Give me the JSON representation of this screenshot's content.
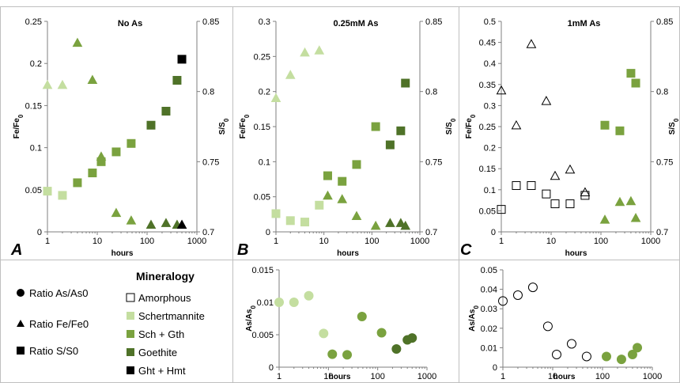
{
  "colors": {
    "Amorphous": "#000000",
    "Schertmannite": "#c4dea0",
    "Sch + Gth": "#7aa23f",
    "Goethite": "#4f7228",
    "Ght + Hmt": "#000000"
  },
  "legend": {
    "mineralogy_title": "Mineralogy",
    "ratios": [
      {
        "label": "Ratio As/As0",
        "marker": "circle"
      },
      {
        "label": "Ratio Fe/Fe0",
        "marker": "triangle"
      },
      {
        "label": "Ratio S/S0",
        "marker": "square"
      }
    ],
    "minerals": [
      {
        "label": "Amorphous",
        "fill": "none",
        "stroke": "#000000"
      },
      {
        "label": "Schertmannite",
        "fill": "#c4dea0",
        "stroke": "#c4dea0"
      },
      {
        "label": "Sch + Gth",
        "fill": "#7aa23f",
        "stroke": "#7aa23f"
      },
      {
        "label": "Goethite",
        "fill": "#4f7228",
        "stroke": "#4f7228"
      },
      {
        "label": "Ght + Hmt",
        "fill": "#000000",
        "stroke": "#000000"
      }
    ]
  },
  "chart_data": [
    {
      "type": "scatter",
      "panel_letter": "A",
      "title": "No As",
      "xlabel": "hours",
      "x_scale": "log",
      "xlim": [
        1,
        1000
      ],
      "x_ticks": [
        1,
        10,
        100,
        1000
      ],
      "ylabel_left": "Fe/Fe0",
      "ylim_left": [
        0,
        0.25
      ],
      "y_ticks_left": [
        0,
        0.05,
        0.1,
        0.15,
        0.2,
        0.25
      ],
      "ylabel_right": "S/S0",
      "ylim_right": [
        0.7,
        0.85
      ],
      "y_ticks_right": [
        0.7,
        0.75,
        0.8,
        0.85
      ],
      "series": [
        {
          "name": "Fe/Fe0",
          "axis": "left",
          "marker": "triangle",
          "points": [
            {
              "x": 1,
              "y": 0.174,
              "mineral": "Schertmannite"
            },
            {
              "x": 2,
              "y": 0.174,
              "mineral": "Schertmannite"
            },
            {
              "x": 4,
              "y": 0.224,
              "mineral": "Sch + Gth"
            },
            {
              "x": 8,
              "y": 0.18,
              "mineral": "Sch + Gth"
            },
            {
              "x": 12,
              "y": 0.089,
              "mineral": "Sch + Gth"
            },
            {
              "x": 24,
              "y": 0.022,
              "mineral": "Sch + Gth"
            },
            {
              "x": 48,
              "y": 0.013,
              "mineral": "Sch + Gth"
            },
            {
              "x": 120,
              "y": 0.008,
              "mineral": "Goethite"
            },
            {
              "x": 240,
              "y": 0.01,
              "mineral": "Goethite"
            },
            {
              "x": 400,
              "y": 0.008,
              "mineral": "Goethite"
            },
            {
              "x": 500,
              "y": 0.008,
              "mineral": "Ght + Hmt"
            }
          ]
        },
        {
          "name": "S/S0",
          "axis": "right",
          "marker": "square",
          "points": [
            {
              "x": 1,
              "y": 0.729,
              "mineral": "Schertmannite"
            },
            {
              "x": 2,
              "y": 0.726,
              "mineral": "Schertmannite"
            },
            {
              "x": 4,
              "y": 0.735,
              "mineral": "Sch + Gth"
            },
            {
              "x": 8,
              "y": 0.742,
              "mineral": "Sch + Gth"
            },
            {
              "x": 12,
              "y": 0.75,
              "mineral": "Sch + Gth"
            },
            {
              "x": 24,
              "y": 0.757,
              "mineral": "Sch + Gth"
            },
            {
              "x": 48,
              "y": 0.763,
              "mineral": "Sch + Gth"
            },
            {
              "x": 120,
              "y": 0.776,
              "mineral": "Goethite"
            },
            {
              "x": 240,
              "y": 0.786,
              "mineral": "Goethite"
            },
            {
              "x": 400,
              "y": 0.808,
              "mineral": "Goethite"
            },
            {
              "x": 500,
              "y": 0.823,
              "mineral": "Ght + Hmt"
            }
          ]
        }
      ]
    },
    {
      "type": "scatter",
      "panel_letter": "B",
      "title": "0.25mM As",
      "xlabel": "hours",
      "x_scale": "log",
      "xlim": [
        1,
        1000
      ],
      "x_ticks": [
        1,
        10,
        100,
        1000
      ],
      "ylabel_left": "Fe/Fe0",
      "ylim_left": [
        0,
        0.3
      ],
      "y_ticks_left": [
        0,
        0.05,
        0.1,
        0.15,
        0.2,
        0.25,
        0.3
      ],
      "ylabel_right": "S/S0",
      "ylim_right": [
        0.7,
        0.85
      ],
      "y_ticks_right": [
        0.7,
        0.75,
        0.8,
        0.85
      ],
      "series": [
        {
          "name": "Fe/Fe0",
          "axis": "left",
          "marker": "triangle",
          "points": [
            {
              "x": 1,
              "y": 0.19,
              "mineral": "Schertmannite"
            },
            {
              "x": 2,
              "y": 0.223,
              "mineral": "Schertmannite"
            },
            {
              "x": 4,
              "y": 0.255,
              "mineral": "Schertmannite"
            },
            {
              "x": 8,
              "y": 0.258,
              "mineral": "Schertmannite"
            },
            {
              "x": 12,
              "y": 0.051,
              "mineral": "Sch + Gth"
            },
            {
              "x": 24,
              "y": 0.046,
              "mineral": "Sch + Gth"
            },
            {
              "x": 48,
              "y": 0.022,
              "mineral": "Sch + Gth"
            },
            {
              "x": 120,
              "y": 0.008,
              "mineral": "Sch + Gth"
            },
            {
              "x": 240,
              "y": 0.012,
              "mineral": "Goethite"
            },
            {
              "x": 400,
              "y": 0.012,
              "mineral": "Goethite"
            },
            {
              "x": 500,
              "y": 0.008,
              "mineral": "Goethite"
            }
          ]
        },
        {
          "name": "S/S0",
          "axis": "right",
          "marker": "square",
          "points": [
            {
              "x": 1,
              "y": 0.713,
              "mineral": "Schertmannite"
            },
            {
              "x": 2,
              "y": 0.708,
              "mineral": "Schertmannite"
            },
            {
              "x": 4,
              "y": 0.707,
              "mineral": "Schertmannite"
            },
            {
              "x": 8,
              "y": 0.719,
              "mineral": "Schertmannite"
            },
            {
              "x": 12,
              "y": 0.74,
              "mineral": "Sch + Gth"
            },
            {
              "x": 24,
              "y": 0.736,
              "mineral": "Sch + Gth"
            },
            {
              "x": 48,
              "y": 0.748,
              "mineral": "Sch + Gth"
            },
            {
              "x": 120,
              "y": 0.775,
              "mineral": "Sch + Gth"
            },
            {
              "x": 240,
              "y": 0.762,
              "mineral": "Goethite"
            },
            {
              "x": 400,
              "y": 0.772,
              "mineral": "Goethite"
            },
            {
              "x": 500,
              "y": 0.806,
              "mineral": "Goethite"
            }
          ]
        }
      ]
    },
    {
      "type": "scatter",
      "panel_letter": "C",
      "title": "1mM As",
      "xlabel": "hours",
      "x_scale": "log",
      "xlim": [
        1,
        1000
      ],
      "x_ticks": [
        1,
        10,
        100,
        1000
      ],
      "ylabel_left": "Fe/Fe0",
      "ylim_left": [
        0,
        0.5
      ],
      "y_ticks_left": [
        0,
        0.05,
        0.1,
        0.15,
        0.2,
        0.25,
        0.3,
        0.35,
        0.4,
        0.45,
        0.5
      ],
      "ylabel_right": "S/S0",
      "ylim_right": [
        0.7,
        0.85
      ],
      "y_ticks_right": [
        0.7,
        0.75,
        0.8,
        0.85
      ],
      "series": [
        {
          "name": "Fe/Fe0",
          "axis": "left",
          "marker": "triangle",
          "points": [
            {
              "x": 1,
              "y": 0.335,
              "mineral": "Amorphous"
            },
            {
              "x": 2,
              "y": 0.252,
              "mineral": "Amorphous"
            },
            {
              "x": 4,
              "y": 0.445,
              "mineral": "Amorphous"
            },
            {
              "x": 8,
              "y": 0.31,
              "mineral": "Amorphous"
            },
            {
              "x": 12,
              "y": 0.132,
              "mineral": "Amorphous"
            },
            {
              "x": 24,
              "y": 0.147,
              "mineral": "Amorphous"
            },
            {
              "x": 48,
              "y": 0.093,
              "mineral": "Amorphous"
            },
            {
              "x": 120,
              "y": 0.028,
              "mineral": "Sch + Gth"
            },
            {
              "x": 240,
              "y": 0.07,
              "mineral": "Sch + Gth"
            },
            {
              "x": 400,
              "y": 0.072,
              "mineral": "Sch + Gth"
            },
            {
              "x": 500,
              "y": 0.032,
              "mineral": "Sch + Gth"
            }
          ]
        },
        {
          "name": "S/S0",
          "axis": "right",
          "marker": "square",
          "points": [
            {
              "x": 1,
              "y": 0.716,
              "mineral": "Amorphous"
            },
            {
              "x": 2,
              "y": 0.733,
              "mineral": "Amorphous"
            },
            {
              "x": 4,
              "y": 0.733,
              "mineral": "Amorphous"
            },
            {
              "x": 8,
              "y": 0.727,
              "mineral": "Amorphous"
            },
            {
              "x": 12,
              "y": 0.72,
              "mineral": "Amorphous"
            },
            {
              "x": 24,
              "y": 0.72,
              "mineral": "Amorphous"
            },
            {
              "x": 48,
              "y": 0.726,
              "mineral": "Amorphous"
            },
            {
              "x": 120,
              "y": 0.776,
              "mineral": "Sch + Gth"
            },
            {
              "x": 240,
              "y": 0.772,
              "mineral": "Sch + Gth"
            },
            {
              "x": 400,
              "y": 0.813,
              "mineral": "Sch + Gth"
            },
            {
              "x": 500,
              "y": 0.806,
              "mineral": "Sch + Gth"
            }
          ]
        }
      ]
    },
    {
      "type": "scatter",
      "panel_letter": "",
      "title": "",
      "xlabel": "hours",
      "x_scale": "log",
      "xlim": [
        1,
        1000
      ],
      "x_ticks": [
        1,
        10,
        100,
        1000
      ],
      "ylabel_left": "As/As0",
      "ylim_left": [
        0,
        0.015
      ],
      "y_ticks_left": [
        0,
        0.005,
        0.01,
        0.015
      ],
      "series": [
        {
          "name": "As/As0",
          "axis": "left",
          "marker": "circle",
          "points": [
            {
              "x": 1,
              "y": 0.01,
              "mineral": "Schertmannite"
            },
            {
              "x": 2,
              "y": 0.01,
              "mineral": "Schertmannite"
            },
            {
              "x": 4,
              "y": 0.011,
              "mineral": "Schertmannite"
            },
            {
              "x": 8,
              "y": 0.0052,
              "mineral": "Schertmannite"
            },
            {
              "x": 12,
              "y": 0.002,
              "mineral": "Sch + Gth"
            },
            {
              "x": 24,
              "y": 0.0019,
              "mineral": "Sch + Gth"
            },
            {
              "x": 48,
              "y": 0.0078,
              "mineral": "Sch + Gth"
            },
            {
              "x": 120,
              "y": 0.0053,
              "mineral": "Sch + Gth"
            },
            {
              "x": 240,
              "y": 0.0028,
              "mineral": "Goethite"
            },
            {
              "x": 400,
              "y": 0.0042,
              "mineral": "Goethite"
            },
            {
              "x": 500,
              "y": 0.0045,
              "mineral": "Goethite"
            }
          ]
        }
      ]
    },
    {
      "type": "scatter",
      "panel_letter": "",
      "title": "",
      "xlabel": "hours",
      "x_scale": "log",
      "xlim": [
        1,
        1000
      ],
      "x_ticks": [
        1,
        10,
        100,
        1000
      ],
      "ylabel_left": "As/As0",
      "ylim_left": [
        0,
        0.05
      ],
      "y_ticks_left": [
        0,
        0.01,
        0.02,
        0.03,
        0.04,
        0.05
      ],
      "series": [
        {
          "name": "As/As0",
          "axis": "left",
          "marker": "circle",
          "points": [
            {
              "x": 1,
              "y": 0.034,
              "mineral": "Amorphous"
            },
            {
              "x": 2,
              "y": 0.037,
              "mineral": "Amorphous"
            },
            {
              "x": 4,
              "y": 0.041,
              "mineral": "Amorphous"
            },
            {
              "x": 8,
              "y": 0.021,
              "mineral": "Amorphous"
            },
            {
              "x": 12,
              "y": 0.0065,
              "mineral": "Amorphous"
            },
            {
              "x": 24,
              "y": 0.012,
              "mineral": "Amorphous"
            },
            {
              "x": 48,
              "y": 0.0055,
              "mineral": "Amorphous"
            },
            {
              "x": 120,
              "y": 0.0055,
              "mineral": "Sch + Gth"
            },
            {
              "x": 240,
              "y": 0.004,
              "mineral": "Sch + Gth"
            },
            {
              "x": 400,
              "y": 0.0065,
              "mineral": "Sch + Gth"
            },
            {
              "x": 500,
              "y": 0.01,
              "mineral": "Sch + Gth"
            }
          ]
        }
      ]
    }
  ]
}
